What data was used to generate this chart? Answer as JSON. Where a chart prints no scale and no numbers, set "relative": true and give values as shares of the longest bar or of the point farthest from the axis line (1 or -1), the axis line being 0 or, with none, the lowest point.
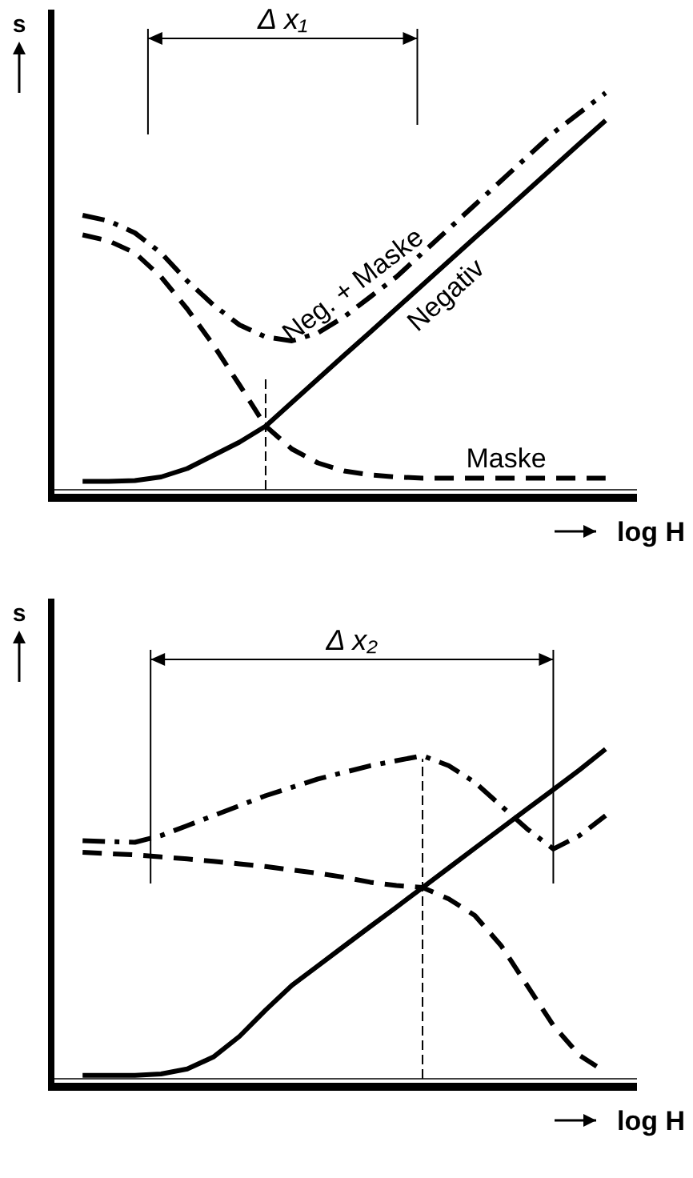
{
  "chart_data": [
    {
      "type": "line",
      "relative": true,
      "xlabel": "log H",
      "ylabel": "s",
      "categories": [
        null,
        null,
        null,
        null,
        null,
        null,
        null,
        null,
        null,
        null,
        null,
        null,
        null,
        null,
        null,
        null,
        null,
        null,
        null,
        null,
        null
      ],
      "annotations": [
        "Δ x₁"
      ],
      "series": [
        {
          "name": "Negativ",
          "color": "#000000",
          "line_style": "solid",
          "values": [
            0.029,
            0.029,
            0.031,
            0.04,
            0.061,
            0.094,
            0.127,
            0.167,
            0.226,
            0.285,
            0.344,
            0.402,
            0.461,
            0.52,
            0.579,
            0.638,
            0.696,
            0.755,
            0.814,
            0.873,
            0.931
          ]
        },
        {
          "name": "Maske",
          "color": "#000000",
          "line_style": "dashed",
          "values": [
            0.645,
            0.63,
            0.6,
            0.54,
            0.46,
            0.37,
            0.27,
            0.167,
            0.11,
            0.075,
            0.055,
            0.045,
            0.04,
            0.037,
            0.037,
            0.037,
            0.037,
            0.037,
            0.037,
            0.037,
            0.037
          ]
        },
        {
          "name": "Neg. + Maske",
          "color": "#000000",
          "line_style": "dashdot",
          "values": [
            0.694,
            0.68,
            0.65,
            0.6,
            0.53,
            0.47,
            0.42,
            0.39,
            0.38,
            0.4,
            0.44,
            0.49,
            0.54,
            0.6,
            0.66,
            0.72,
            0.78,
            0.84,
            0.9,
            0.95,
            1.0
          ]
        }
      ]
    },
    {
      "type": "line",
      "relative": true,
      "xlabel": "log H",
      "ylabel": "s",
      "categories": [
        null,
        null,
        null,
        null,
        null,
        null,
        null,
        null,
        null,
        null,
        null,
        null,
        null,
        null,
        null,
        null,
        null,
        null,
        null,
        null,
        null
      ],
      "annotations": [
        "Δ x₂"
      ],
      "series": [
        {
          "color": "#000000",
          "line_style": "solid",
          "values": [
            0.02,
            0.02,
            0.02,
            0.024,
            0.039,
            0.075,
            0.137,
            0.216,
            0.29,
            0.349,
            0.408,
            0.467,
            0.525,
            0.584,
            0.643,
            0.702,
            0.761,
            0.82,
            0.878,
            0.937,
            1.0
          ]
        },
        {
          "color": "#000000",
          "line_style": "dashed",
          "values": [
            0.69,
            0.686,
            0.682,
            0.676,
            0.67,
            0.663,
            0.655,
            0.647,
            0.637,
            0.627,
            0.615,
            0.6,
            0.59,
            0.584,
            0.55,
            0.5,
            0.41,
            0.29,
            0.17,
            0.08,
            0.03
          ]
        },
        {
          "color": "#000000",
          "line_style": "dashdot",
          "values": [
            0.725,
            0.722,
            0.72,
            0.74,
            0.77,
            0.8,
            0.83,
            0.86,
            0.885,
            0.91,
            0.93,
            0.95,
            0.965,
            0.98,
            0.95,
            0.9,
            0.83,
            0.76,
            0.7,
            0.74,
            0.8
          ]
        }
      ]
    }
  ]
}
